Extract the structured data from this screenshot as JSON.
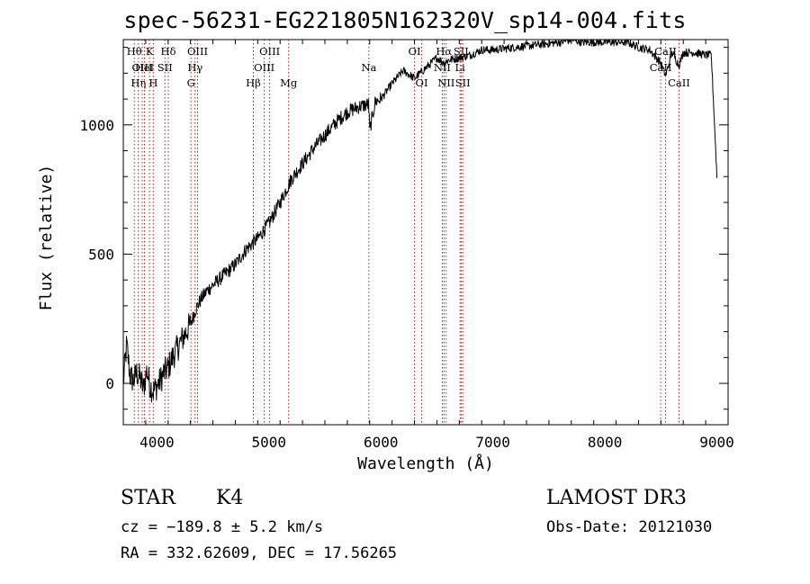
{
  "chart_data": {
    "type": "line",
    "title": "spec-56231-EG221805N162320V_sp14-004.fits",
    "xlabel": "Wavelength (Å)",
    "ylabel": "Flux (relative)",
    "xlim": [
      3700,
      9100
    ],
    "ylim": [
      -160,
      1330
    ],
    "xticks": [
      4000,
      5000,
      6000,
      7000,
      8000,
      9000
    ],
    "yticks": [
      0,
      500,
      1000
    ],
    "series": [
      {
        "name": "flux",
        "x": [
          3700,
          3730,
          3760,
          3790,
          3820,
          3850,
          3880,
          3910,
          3940,
          3970,
          4000,
          4030,
          4060,
          4100,
          4150,
          4200,
          4250,
          4300,
          4350,
          4400,
          4450,
          4500,
          4600,
          4700,
          4800,
          4900,
          5000,
          5100,
          5200,
          5300,
          5400,
          5500,
          5600,
          5700,
          5800,
          5890,
          5900,
          5950,
          6000,
          6100,
          6200,
          6300,
          6400,
          6500,
          6563,
          6600,
          6700,
          6800,
          6900,
          7000,
          7200,
          7400,
          7600,
          7700,
          7800,
          8000,
          8200,
          8300,
          8400,
          8498,
          8542,
          8600,
          8662,
          8700,
          8800,
          8900,
          8950,
          9000
        ],
        "y": [
          0,
          150,
          30,
          10,
          40,
          20,
          -20,
          50,
          -10,
          -30,
          -10,
          10,
          40,
          60,
          110,
          150,
          190,
          230,
          290,
          330,
          360,
          380,
          420,
          460,
          520,
          560,
          620,
          700,
          790,
          850,
          910,
          960,
          1010,
          1050,
          1070,
          1080,
          980,
          1090,
          1100,
          1160,
          1210,
          1180,
          1220,
          1260,
          1240,
          1250,
          1260,
          1270,
          1290,
          1290,
          1300,
          1310,
          1320,
          1330,
          1320,
          1320,
          1320,
          1300,
          1290,
          1240,
          1190,
          1280,
          1230,
          1280,
          1280,
          1270,
          1270,
          800
        ]
      }
    ],
    "lines": [
      {
        "wave": 3798,
        "label": "Hθ",
        "row": 0
      },
      {
        "wave": 3835,
        "label": "Hη",
        "row": 2
      },
      {
        "wave": 3869,
        "label": "OIII",
        "row": 1
      },
      {
        "wave": 3889,
        "label": "HeI",
        "row": 1
      },
      {
        "wave": 3934,
        "label": "K",
        "row": 0
      },
      {
        "wave": 3968,
        "label": "H",
        "row": 2
      },
      {
        "wave": 4072,
        "label": "SII",
        "row": 1
      },
      {
        "wave": 4102,
        "label": "Hδ",
        "row": 0
      },
      {
        "wave": 4304,
        "label": "G",
        "row": 2
      },
      {
        "wave": 4341,
        "label": "Hγ",
        "row": 1
      },
      {
        "wave": 4363,
        "label": "OIII",
        "row": 0
      },
      {
        "wave": 4861,
        "label": "Hβ",
        "row": 2
      },
      {
        "wave": 4959,
        "label": "OIII",
        "row": 1
      },
      {
        "wave": 5007,
        "label": "OIII",
        "row": 0
      },
      {
        "wave": 5176,
        "label": "Mg",
        "row": 2
      },
      {
        "wave": 5893,
        "label": "Na",
        "row": 1
      },
      {
        "wave": 6300,
        "label": "OI",
        "row": 0
      },
      {
        "wave": 6364,
        "label": "OI",
        "row": 2
      },
      {
        "wave": 6548,
        "label": "NII",
        "row": 1
      },
      {
        "wave": 6563,
        "label": "Hα",
        "row": 0
      },
      {
        "wave": 6583,
        "label": "NII",
        "row": 2
      },
      {
        "wave": 6707,
        "label": "Li",
        "row": 1
      },
      {
        "wave": 6716,
        "label": "SII",
        "row": 0
      },
      {
        "wave": 6731,
        "label": "SII",
        "row": 2
      },
      {
        "wave": 8498,
        "label": "CaII",
        "row": 1
      },
      {
        "wave": 8542,
        "label": "CaII",
        "row": 0
      },
      {
        "wave": 8662,
        "label": "CaII",
        "row": 2
      }
    ]
  },
  "info": {
    "class": "STAR",
    "subclass": "K4",
    "survey": "LAMOST DR3",
    "cz": "cz = −189.8 ± 5.2 km/s",
    "obs_date": "Obs-Date: 20121030",
    "coords": "RA = 332.62609, DEC =  17.56265"
  }
}
